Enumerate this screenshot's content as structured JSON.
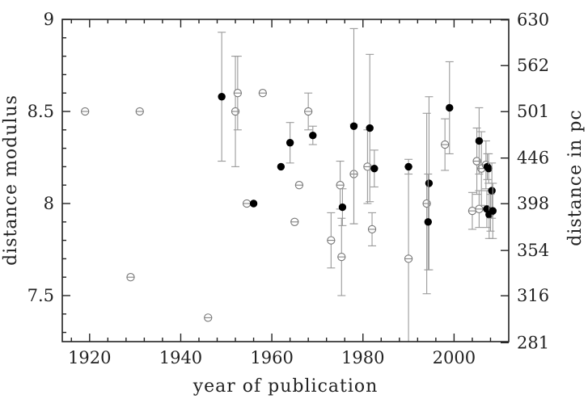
{
  "chart_data": {
    "type": "scatter",
    "xlabel": "year of publication",
    "ylabel": "distance modulus",
    "ylabel_right": "distance in pc",
    "xlim": [
      1914,
      2012
    ],
    "ylim": [
      7.25,
      9.0
    ],
    "x_ticks": [
      1920,
      1940,
      1960,
      1980,
      2000
    ],
    "y_ticks": [
      7.5,
      8,
      8.5,
      9
    ],
    "y_tick_labels": [
      "7.5",
      "8",
      "8.5",
      "9"
    ],
    "right_ticks": [
      {
        "label": "281",
        "modulus": 7.244
      },
      {
        "label": "316",
        "modulus": 7.499
      },
      {
        "label": "354",
        "modulus": 7.745
      },
      {
        "label": "398",
        "modulus": 7.999
      },
      {
        "label": "446",
        "modulus": 8.247
      },
      {
        "label": "501",
        "modulus": 8.499
      },
      {
        "label": "562",
        "modulus": 8.749
      },
      {
        "label": "630",
        "modulus": 8.997
      }
    ],
    "grid": false,
    "series": [
      {
        "marker": "open-circle",
        "points": [
          {
            "x": 1919,
            "y": 8.5
          },
          {
            "x": 1929,
            "y": 7.6
          },
          {
            "x": 1931,
            "y": 8.5
          },
          {
            "x": 1946,
            "y": 7.38
          },
          {
            "x": 1952,
            "y": 8.5,
            "err": 0.3
          },
          {
            "x": 1952.5,
            "y": 8.6,
            "err": 0.2
          },
          {
            "x": 1954.5,
            "y": 8.0
          },
          {
            "x": 1958,
            "y": 8.6
          },
          {
            "x": 1965,
            "y": 7.9
          },
          {
            "x": 1966,
            "y": 8.1
          },
          {
            "x": 1968,
            "y": 8.5,
            "err": 0.1
          },
          {
            "x": 1973,
            "y": 7.8,
            "err": 0.15
          },
          {
            "x": 1975,
            "y": 8.1,
            "err": 0.13
          },
          {
            "x": 1975.3,
            "y": 7.71,
            "err": 0.21
          },
          {
            "x": 1978,
            "y": 8.16,
            "err": 0.27
          },
          {
            "x": 1981,
            "y": 8.2,
            "err": 0.2
          },
          {
            "x": 1982,
            "y": 7.86,
            "err": 0.09
          },
          {
            "x": 1990,
            "y": 7.7,
            "err": 0.5
          },
          {
            "x": 1994,
            "y": 8.0,
            "err": 0.49
          },
          {
            "x": 1998,
            "y": 8.32,
            "err": 0.14
          },
          {
            "x": 2004,
            "y": 7.96,
            "err": 0.1
          },
          {
            "x": 2005,
            "y": 8.23,
            "err": 0.18
          },
          {
            "x": 2005.5,
            "y": 7.97,
            "err": 0.1
          },
          {
            "x": 2006,
            "y": 8.19,
            "err": 0.2
          },
          {
            "x": 2007,
            "y": 8.21,
            "err": 0.13
          },
          {
            "x": 2008,
            "y": 7.95,
            "err": 0.1
          }
        ]
      },
      {
        "marker": "filled-circle",
        "points": [
          {
            "x": 1949,
            "y": 8.58,
            "err": 0.35
          },
          {
            "x": 1956,
            "y": 8.0
          },
          {
            "x": 1962,
            "y": 8.2
          },
          {
            "x": 1964,
            "y": 8.33,
            "err": 0.11
          },
          {
            "x": 1969,
            "y": 8.37,
            "err": 0.05
          },
          {
            "x": 1975.5,
            "y": 7.98,
            "err": 0.1
          },
          {
            "x": 1978,
            "y": 8.42,
            "err": 0.53
          },
          {
            "x": 1981.5,
            "y": 8.41,
            "err": 0.4
          },
          {
            "x": 1982.5,
            "y": 8.19,
            "err": 0.1
          },
          {
            "x": 1990,
            "y": 8.2,
            "err": 0.04
          },
          {
            "x": 1994.5,
            "y": 8.11,
            "err": 0.47
          },
          {
            "x": 1994.3,
            "y": 7.9,
            "err": 0.26
          },
          {
            "x": 1999,
            "y": 8.52,
            "err": 0.25
          },
          {
            "x": 2005.5,
            "y": 8.34,
            "err": 0.18
          },
          {
            "x": 2007.3,
            "y": 8.2,
            "err": 0.07
          },
          {
            "x": 2007.6,
            "y": 8.19,
            "err": 0.08
          },
          {
            "x": 2007.2,
            "y": 7.97,
            "err": 0.1
          },
          {
            "x": 2007.7,
            "y": 7.94,
            "err": 0.13
          },
          {
            "x": 2008.3,
            "y": 8.07,
            "err": 0.15
          },
          {
            "x": 2008.5,
            "y": 7.96,
            "err": 0.15
          }
        ]
      }
    ]
  }
}
